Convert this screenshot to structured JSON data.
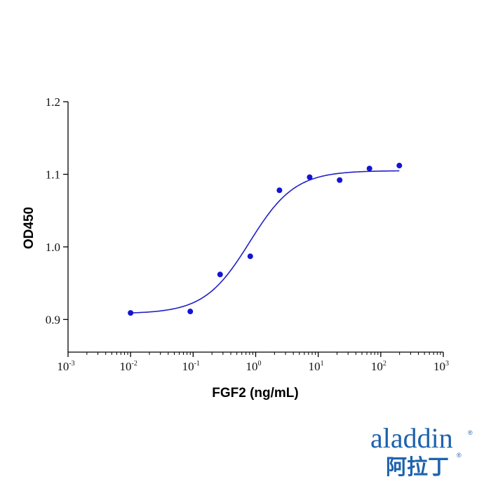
{
  "chart_data": {
    "type": "scatter",
    "title": "",
    "xlabel": "FGF2 (ng/mL)",
    "ylabel": "OD450",
    "x_scale": "log10",
    "xlim": [
      0.001,
      1000
    ],
    "ylim": [
      0.855,
      1.2
    ],
    "x_ticks": [
      {
        "base": "10",
        "exp": "-3"
      },
      {
        "base": "10",
        "exp": "-2"
      },
      {
        "base": "10",
        "exp": "-1"
      },
      {
        "base": "10",
        "exp": "0"
      },
      {
        "base": "10",
        "exp": "1"
      },
      {
        "base": "10",
        "exp": "2"
      },
      {
        "base": "10",
        "exp": "3"
      }
    ],
    "y_ticks": [
      "0.9",
      "1.0",
      "1.1",
      "1.2"
    ],
    "points": [
      {
        "x": 0.01,
        "y": 0.909
      },
      {
        "x": 0.09,
        "y": 0.911
      },
      {
        "x": 0.27,
        "y": 0.962
      },
      {
        "x": 0.82,
        "y": 0.987
      },
      {
        "x": 2.4,
        "y": 1.078
      },
      {
        "x": 7.3,
        "y": 1.096
      },
      {
        "x": 22,
        "y": 1.092
      },
      {
        "x": 66,
        "y": 1.108
      },
      {
        "x": 198,
        "y": 1.112
      }
    ],
    "fit_curve": {
      "bottom": 0.908,
      "top": 1.105,
      "ec50": 0.8,
      "hill": 1.2,
      "x_range": [
        0.01,
        198
      ]
    },
    "colors": {
      "points": "#1414d2",
      "curve": "#2020c8",
      "axis": "#000000"
    },
    "grid": false,
    "legend": "none"
  },
  "logo": {
    "text_en": "aladdin",
    "text_cn": "阿拉丁",
    "reg": "®",
    "color": "#1e63ad"
  }
}
